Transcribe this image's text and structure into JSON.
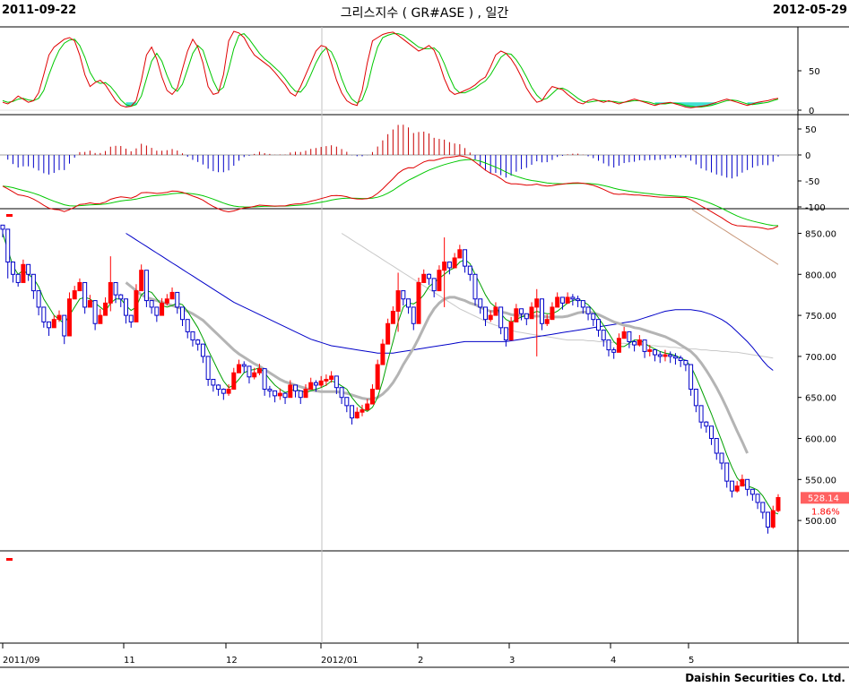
{
  "header": {
    "start_date": "2011-09-22",
    "end_date": "2012-05-29",
    "title": "그리스지수 ( GR#ASE ) , 일간"
  },
  "footer": {
    "company": "Daishin Securities Co. Ltd."
  },
  "colors": {
    "up": "#ff0000",
    "down": "#0000c8",
    "ma_short": "#00a000",
    "ma_mid": "#b4b4b4",
    "ma_long_blue": "#0000c8",
    "ma_long_gray": "#c8c8c8",
    "ma_brown": "#c89678",
    "stoch_k": "#e00000",
    "stoch_d": "#00c800",
    "hist_pos": "#c80000",
    "hist_neg": "#0000c8",
    "last_price_bg": "#ff6060"
  },
  "chart_data": {
    "type": "candlestick",
    "price_axis": {
      "ticks": [
        "850.00",
        "800.00",
        "750.00",
        "700.00",
        "650.00",
        "600.00",
        "550.00",
        "500.00"
      ],
      "ylim": [
        463,
        880
      ]
    },
    "x_axis_labels": [
      "2011/09",
      "11",
      "12",
      "2012/01",
      "2",
      "3",
      "4",
      "5"
    ],
    "last_price": "528.14",
    "last_change": "1.86%",
    "stochastic": {
      "ticks": [
        "50",
        "0"
      ],
      "ylim": [
        0,
        100
      ]
    },
    "macd": {
      "ticks": [
        "50",
        "0",
        "-50",
        "-100"
      ],
      "ylim": [
        -100,
        65
      ]
    },
    "close": [
      855,
      815,
      800,
      790,
      812,
      800,
      780,
      760,
      742,
      735,
      745,
      750,
      725,
      770,
      780,
      790,
      760,
      768,
      740,
      750,
      765,
      790,
      775,
      770,
      750,
      742,
      780,
      805,
      768,
      760,
      750,
      765,
      770,
      778,
      760,
      745,
      730,
      720,
      715,
      700,
      672,
      665,
      660,
      655,
      660,
      680,
      690,
      688,
      675,
      680,
      685,
      660,
      658,
      652,
      655,
      650,
      665,
      658,
      650,
      660,
      668,
      665,
      670,
      672,
      676,
      662,
      650,
      640,
      625,
      632,
      635,
      642,
      660,
      690,
      715,
      740,
      755,
      780,
      770,
      760,
      740,
      790,
      800,
      795,
      780,
      805,
      815,
      808,
      820,
      830,
      810,
      800,
      770,
      760,
      745,
      750,
      760,
      735,
      720,
      742,
      758,
      752,
      746,
      760,
      770,
      740,
      745,
      760,
      772,
      765,
      772,
      770,
      768,
      760,
      752,
      745,
      732,
      720,
      708,
      705,
      722,
      730,
      718,
      714,
      720,
      706,
      708,
      702,
      700,
      702,
      700,
      698,
      695,
      690,
      660,
      640,
      620,
      615,
      600,
      582,
      570,
      548,
      536,
      542,
      550,
      538,
      532,
      522,
      510,
      492,
      512,
      528
    ],
    "high": [
      860,
      822,
      808,
      800,
      818,
      806,
      790,
      768,
      750,
      742,
      750,
      756,
      735,
      778,
      786,
      795,
      768,
      775,
      748,
      758,
      772,
      822,
      785,
      776,
      758,
      748,
      788,
      812,
      775,
      766,
      756,
      771,
      776,
      784,
      766,
      752,
      735,
      726,
      721,
      706,
      678,
      672,
      666,
      661,
      666,
      686,
      696,
      694,
      681,
      686,
      691,
      666,
      664,
      658,
      661,
      656,
      671,
      664,
      656,
      666,
      674,
      671,
      676,
      678,
      682,
      668,
      656,
      646,
      631,
      638,
      641,
      648,
      666,
      696,
      721,
      746,
      761,
      802,
      776,
      766,
      746,
      796,
      806,
      801,
      786,
      811,
      845,
      814,
      826,
      836,
      816,
      806,
      776,
      766,
      751,
      756,
      766,
      741,
      726,
      748,
      764,
      758,
      752,
      766,
      782,
      746,
      751,
      766,
      778,
      771,
      778,
      776,
      774,
      766,
      758,
      751,
      738,
      726,
      714,
      711,
      728,
      736,
      724,
      720,
      726,
      712,
      714,
      708,
      706,
      708,
      706,
      704,
      701,
      696,
      666,
      646,
      626,
      621,
      606,
      588,
      576,
      554,
      542,
      548,
      556,
      544,
      538,
      528,
      516,
      498,
      518,
      532
    ],
    "low": [
      845,
      795,
      790,
      785,
      800,
      792,
      770,
      750,
      735,
      725,
      738,
      742,
      715,
      758,
      770,
      780,
      752,
      760,
      732,
      742,
      755,
      755,
      765,
      760,
      740,
      735,
      770,
      795,
      760,
      752,
      742,
      757,
      762,
      770,
      752,
      737,
      722,
      712,
      707,
      692,
      664,
      657,
      652,
      647,
      652,
      672,
      682,
      680,
      667,
      672,
      677,
      652,
      650,
      644,
      647,
      642,
      657,
      650,
      642,
      652,
      660,
      657,
      662,
      664,
      668,
      654,
      642,
      632,
      617,
      624,
      627,
      634,
      652,
      682,
      707,
      732,
      747,
      730,
      762,
      752,
      732,
      782,
      792,
      787,
      772,
      797,
      760,
      800,
      812,
      822,
      802,
      792,
      762,
      752,
      737,
      742,
      752,
      727,
      712,
      734,
      750,
      744,
      738,
      752,
      700,
      732,
      737,
      752,
      764,
      757,
      764,
      762,
      760,
      752,
      744,
      737,
      724,
      712,
      700,
      697,
      714,
      722,
      710,
      706,
      712,
      698,
      700,
      694,
      692,
      694,
      692,
      690,
      687,
      682,
      652,
      632,
      612,
      607,
      592,
      574,
      562,
      540,
      528,
      534,
      542,
      530,
      524,
      514,
      502,
      484,
      490,
      510
    ],
    "ma5": [
      850,
      830,
      810,
      800,
      805,
      800,
      795,
      785,
      770,
      760,
      750,
      745,
      740,
      750,
      760,
      770,
      772,
      770,
      765,
      760,
      755,
      765,
      770,
      770,
      762,
      756,
      760,
      775,
      780,
      778,
      770,
      762,
      760,
      762,
      765,
      763,
      755,
      745,
      735,
      722,
      708,
      695,
      682,
      670,
      662,
      665,
      672,
      680,
      683,
      684,
      686,
      680,
      672,
      665,
      660,
      656,
      658,
      660,
      658,
      656,
      658,
      660,
      662,
      665,
      670,
      668,
      664,
      660,
      650,
      642,
      636,
      633,
      638,
      650,
      670,
      695,
      718,
      742,
      760,
      765,
      764,
      768,
      775,
      785,
      790,
      795,
      800,
      805,
      808,
      815,
      818,
      813,
      800,
      788,
      775,
      765,
      760,
      752,
      745,
      742,
      745,
      748,
      750,
      752,
      755,
      753,
      752,
      752,
      755,
      760,
      765,
      768,
      770,
      767,
      763,
      756,
      747,
      738,
      728,
      718,
      712,
      712,
      716,
      720,
      720,
      716,
      712,
      709,
      706,
      704,
      703,
      701,
      698,
      695,
      688,
      675,
      660,
      645,
      630,
      613,
      597,
      580,
      565,
      552,
      545,
      542,
      540,
      537,
      530,
      520,
      510,
      508
    ],
    "ma20": [
      null,
      null,
      null,
      null,
      null,
      null,
      null,
      null,
      null,
      null,
      null,
      null,
      null,
      null,
      null,
      null,
      null,
      null,
      null,
      null,
      null,
      null,
      null,
      null,
      790,
      785,
      780,
      775,
      772,
      770,
      768,
      766,
      764,
      762,
      760,
      758,
      755,
      752,
      748,
      744,
      738,
      732,
      726,
      720,
      714,
      708,
      703,
      699,
      695,
      691,
      688,
      684,
      680,
      676,
      672,
      669,
      667,
      665,
      663,
      661,
      659,
      658,
      657,
      657,
      657,
      657,
      656,
      655,
      653,
      651,
      649,
      648,
      648,
      650,
      654,
      660,
      668,
      678,
      690,
      700,
      710,
      722,
      735,
      748,
      758,
      765,
      770,
      772,
      772,
      770,
      768,
      765,
      763,
      760,
      757,
      755,
      755,
      754,
      753,
      751,
      750,
      750,
      749,
      749,
      749,
      749,
      748,
      748,
      748,
      748,
      749,
      751,
      753,
      754,
      754,
      753,
      751,
      748,
      745,
      742,
      740,
      738,
      737,
      735,
      734,
      732,
      730,
      728,
      726,
      724,
      721,
      718,
      714,
      710,
      706,
      700,
      692,
      683,
      673,
      662,
      650,
      637,
      623,
      609,
      596,
      582
    ],
    "ma60": [
      null,
      null,
      null,
      null,
      null,
      null,
      null,
      null,
      null,
      null,
      null,
      null,
      null,
      null,
      null,
      null,
      null,
      null,
      null,
      null,
      null,
      null,
      null,
      null,
      850,
      846,
      842,
      838,
      834,
      830,
      826,
      822,
      818,
      814,
      810,
      806,
      802,
      798,
      794,
      790,
      786,
      782,
      778,
      774,
      770,
      766,
      763,
      760,
      757,
      754,
      751,
      748,
      745,
      742,
      739,
      736,
      733,
      730,
      727,
      724,
      721,
      719,
      717,
      715,
      713,
      712,
      711,
      710,
      709,
      708,
      707,
      706,
      705,
      704,
      704,
      704,
      704,
      705,
      706,
      707,
      708,
      709,
      710,
      711,
      712,
      713,
      714,
      715,
      716,
      717,
      718,
      718,
      718,
      718,
      718,
      718,
      718,
      718,
      718,
      719,
      720,
      721,
      722,
      723,
      724,
      725,
      726,
      727,
      728,
      729,
      730,
      731,
      732,
      733,
      734,
      735,
      736,
      737,
      738,
      739,
      740,
      741,
      742,
      743,
      745,
      747,
      749,
      751,
      753,
      755,
      756,
      757,
      757,
      757,
      757,
      756,
      755,
      753,
      751,
      748,
      745,
      741,
      736,
      730,
      724,
      718,
      711,
      703,
      695,
      688,
      683
    ],
    "ma120": [
      null,
      null,
      null,
      null,
      null,
      null,
      null,
      null,
      null,
      null,
      null,
      null,
      null,
      null,
      null,
      null,
      null,
      null,
      null,
      null,
      null,
      null,
      null,
      null,
      null,
      null,
      null,
      null,
      null,
      null,
      null,
      null,
      null,
      null,
      null,
      null,
      null,
      null,
      null,
      null,
      null,
      null,
      null,
      null,
      null,
      null,
      null,
      null,
      null,
      null,
      null,
      null,
      null,
      null,
      null,
      null,
      null,
      null,
      null,
      null,
      null,
      null,
      null,
      null,
      null,
      null,
      850,
      846,
      842,
      838,
      834,
      830,
      826,
      822,
      818,
      814,
      810,
      806,
      802,
      798,
      794,
      790,
      786,
      782,
      778,
      774,
      770,
      766,
      762,
      758,
      755,
      752,
      749,
      746,
      743,
      740,
      738,
      736,
      734,
      732,
      730,
      729,
      728,
      727,
      726,
      725,
      724,
      723,
      722,
      721,
      720,
      720,
      720,
      720,
      719,
      719,
      718,
      718,
      717,
      717,
      716,
      716,
      715,
      715,
      714,
      714,
      713,
      713,
      712,
      712,
      711,
      711,
      710,
      710,
      709,
      709,
      708,
      708,
      707,
      707,
      706,
      706,
      705,
      705,
      704,
      703,
      702,
      701,
      700,
      699,
      698
    ],
    "ma_brown": [
      null,
      null,
      null,
      null,
      null,
      null,
      null,
      null,
      null,
      null,
      null,
      null,
      null,
      null,
      null,
      null,
      null,
      null,
      null,
      null,
      null,
      null,
      null,
      null,
      null,
      null,
      null,
      null,
      null,
      null,
      null,
      null,
      null,
      null,
      null,
      null,
      null,
      null,
      null,
      null,
      null,
      null,
      null,
      null,
      null,
      null,
      null,
      null,
      null,
      null,
      null,
      null,
      null,
      null,
      null,
      null,
      null,
      null,
      null,
      null,
      null,
      null,
      null,
      null,
      null,
      null,
      null,
      null,
      null,
      null,
      null,
      null,
      null,
      null,
      null,
      null,
      null,
      null,
      null,
      null,
      null,
      null,
      null,
      null,
      null,
      null,
      null,
      null,
      null,
      null,
      null,
      null,
      null,
      null,
      null,
      null,
      null,
      null,
      null,
      null,
      null,
      null,
      null,
      null,
      null,
      null,
      null,
      null,
      null,
      null,
      null,
      null,
      null,
      null,
      null,
      null,
      null,
      null,
      null,
      null,
      null,
      null,
      null,
      null,
      null,
      null,
      null,
      null,
      null,
      null,
      null,
      null,
      null,
      null,
      880,
      876,
      872,
      868,
      864,
      860,
      856,
      852,
      848,
      844,
      840,
      836,
      832,
      828,
      824,
      820,
      816,
      812
    ],
    "stoch_k": [
      10,
      8,
      12,
      18,
      14,
      10,
      12,
      22,
      45,
      70,
      80,
      85,
      90,
      92,
      88,
      70,
      45,
      30,
      35,
      38,
      32,
      22,
      12,
      6,
      4,
      5,
      12,
      38,
      70,
      80,
      65,
      42,
      25,
      20,
      28,
      52,
      75,
      90,
      80,
      60,
      30,
      20,
      22,
      45,
      88,
      100,
      98,
      92,
      80,
      70,
      65,
      60,
      55,
      48,
      40,
      32,
      22,
      18,
      30,
      45,
      60,
      75,
      82,
      80,
      60,
      38,
      22,
      12,
      8,
      6,
      25,
      60,
      88,
      92,
      96,
      98,
      99,
      95,
      90,
      85,
      80,
      75,
      78,
      82,
      76,
      60,
      40,
      25,
      20,
      22,
      25,
      28,
      32,
      38,
      42,
      55,
      70,
      75,
      72,
      65,
      55,
      42,
      28,
      18,
      10,
      12,
      22,
      30,
      28,
      26,
      20,
      15,
      10,
      8,
      12,
      14,
      12,
      10,
      12,
      10,
      8,
      10,
      12,
      14,
      12,
      10,
      8,
      6,
      8,
      9,
      10,
      8,
      6,
      4,
      3,
      4,
      5,
      6,
      8,
      10,
      12,
      14,
      12,
      10,
      8,
      6,
      8,
      10,
      11,
      12,
      14,
      15
    ],
    "stoch_d": [
      12,
      10,
      11,
      14,
      15,
      13,
      12,
      15,
      25,
      45,
      62,
      76,
      85,
      89,
      90,
      82,
      67,
      48,
      37,
      34,
      35,
      30,
      22,
      13,
      7,
      5,
      7,
      18,
      40,
      62,
      72,
      62,
      44,
      29,
      24,
      33,
      52,
      72,
      82,
      76,
      56,
      37,
      24,
      29,
      52,
      78,
      95,
      97,
      90,
      81,
      72,
      65,
      60,
      54,
      48,
      40,
      31,
      24,
      23,
      31,
      45,
      60,
      72,
      79,
      74,
      60,
      40,
      24,
      14,
      9,
      13,
      30,
      58,
      80,
      92,
      95,
      97,
      97,
      95,
      90,
      85,
      80,
      78,
      78,
      79,
      73,
      59,
      42,
      28,
      22,
      22,
      25,
      28,
      33,
      37,
      45,
      56,
      67,
      72,
      71,
      64,
      54,
      42,
      29,
      19,
      13,
      15,
      21,
      27,
      28,
      25,
      20,
      15,
      11,
      10,
      11,
      12,
      12,
      11,
      11,
      10,
      10,
      11,
      12,
      12,
      11,
      10,
      8,
      8,
      8,
      9,
      9,
      8,
      6,
      5,
      4,
      4,
      5,
      6,
      8,
      10,
      12,
      13,
      12,
      10,
      8,
      7,
      8,
      9,
      10,
      12,
      14
    ]
  }
}
